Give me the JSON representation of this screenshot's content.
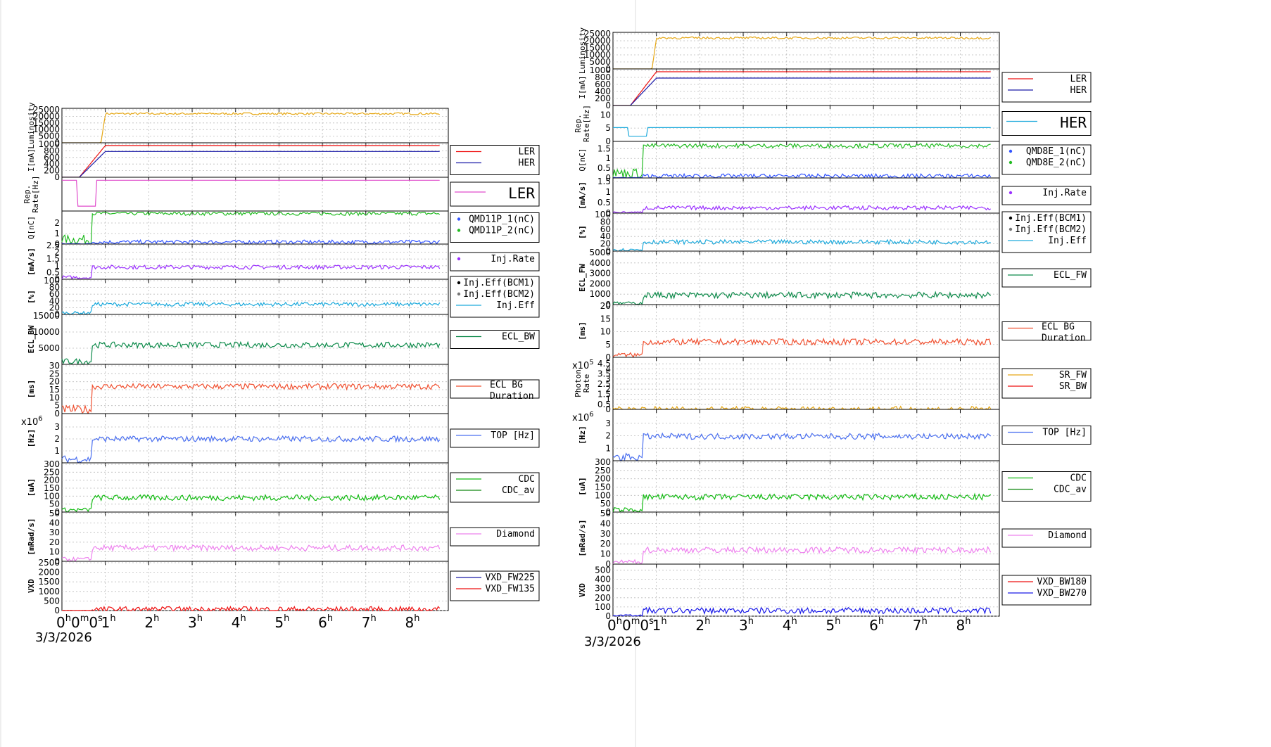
{
  "chart_data": [
    {
      "type": "line",
      "date": "3/3/2026",
      "xlim": [
        0,
        8.9
      ],
      "x_ticks": [
        {
          "base": "0",
          "exp": "h",
          "extra": "0",
          "exp2": "m",
          "extra2": "0",
          "exp3": "s"
        },
        {
          "base": "1",
          "exp": "h"
        },
        {
          "base": "2",
          "exp": "h"
        },
        {
          "base": "3",
          "exp": "h"
        },
        {
          "base": "4",
          "exp": "h"
        },
        {
          "base": "5",
          "exp": "h"
        },
        {
          "base": "6",
          "exp": "h"
        },
        {
          "base": "7",
          "exp": "h"
        },
        {
          "base": "8",
          "exp": "h"
        }
      ],
      "panels": [
        {
          "ylabel": "Luminosity",
          "ylim": [
            0,
            25000
          ],
          "yticks": [
            "0",
            "5000",
            "10000",
            "15000",
            "20000",
            "25000"
          ],
          "legend": [],
          "series": [
            {
              "color": "#e6a817",
              "kind": "lum"
            }
          ]
        },
        {
          "ylabel": "I[mA]",
          "ylim": [
            0,
            1000
          ],
          "yticks": [
            "0",
            "200",
            "400",
            "600",
            "800",
            "1000"
          ],
          "legend": [
            {
              "name": "LER",
              "color": "#ee1111"
            },
            {
              "name": "HER",
              "color": "#1a1aa8"
            }
          ],
          "series": [
            {
              "color": "#ee1111",
              "level": 960
            },
            {
              "color": "#1a1aa8",
              "level": 780
            }
          ]
        },
        {
          "ylabel": "Rep. Rate[Hz]",
          "ylim": [
            0,
            25
          ],
          "yticks": [],
          "legend": [
            {
              "name": "LER",
              "color": "#e04ecc",
              "big": true
            }
          ],
          "series": [
            {
              "color": "#e04ecc",
              "kind": "rep"
            }
          ]
        },
        {
          "ylabel": "Q[nC]",
          "ylim": [
            0,
            3
          ],
          "yticks": [
            "0",
            "1",
            "2"
          ],
          "legend": [
            {
              "name": "QMD11P_1(nC)",
              "color": "#3355ff",
              "marker": true
            },
            {
              "name": "QMD11P_2(nC)",
              "color": "#22bb22",
              "marker": true
            }
          ],
          "series": [
            {
              "color": "#22bb22",
              "level": 2.9
            },
            {
              "color": "#3355ff",
              "level": 0.2
            }
          ]
        },
        {
          "ylabel": "[mA/s]",
          "ylim": [
            0,
            2.5
          ],
          "yticks": [
            "0",
            "0.5",
            "1",
            "1.5",
            "2",
            "2.5"
          ],
          "legend": [
            {
              "name": "Inj.Rate",
              "color": "#9b30ff",
              "marker": true
            }
          ],
          "series": [
            {
              "color": "#9b30ff",
              "level": 0.9
            }
          ]
        },
        {
          "ylabel": "[%]",
          "ylim": [
            0,
            100
          ],
          "yticks": [
            "0",
            "20",
            "40",
            "60",
            "80",
            "100"
          ],
          "legend": [
            {
              "name": "Inj.Eff(BCM1)",
              "color": "#000000",
              "marker": true
            },
            {
              "name": "Inj.Eff(BCM2)",
              "color": "#777777",
              "marker": true
            },
            {
              "name": "Inj.Eff",
              "color": "#1eaadc"
            }
          ],
          "series": [
            {
              "color": "#1eaadc",
              "level": 30
            }
          ]
        },
        {
          "ylabel": "ECL_BW",
          "ylim": [
            0,
            15000
          ],
          "yticks": [
            "5000",
            "10000",
            "15000"
          ],
          "legend": [
            {
              "name": "ECL_BW",
              "color": "#0d8a4a"
            }
          ],
          "series": [
            {
              "color": "#0d8a4a",
              "level": 6000
            }
          ]
        },
        {
          "ylabel": "[ms]",
          "ylim": [
            0,
            30
          ],
          "yticks": [
            "0",
            "5",
            "10",
            "15",
            "20",
            "25",
            "30"
          ],
          "legend": [
            {
              "name": "ECL BG Duration",
              "color": "#f05030"
            }
          ],
          "series": [
            {
              "color": "#f05030",
              "level": 17
            }
          ]
        },
        {
          "ylabel": "[Hz]",
          "ylim": [
            0,
            4
          ],
          "yticks": [
            "1",
            "2",
            "3"
          ],
          "exponent": "x10^6",
          "legend": [
            {
              "name": "TOP [Hz]",
              "color": "#4a6ff0"
            }
          ],
          "series": [
            {
              "color": "#4a6ff0",
              "level": 2.0
            }
          ]
        },
        {
          "ylabel": "[uA]",
          "ylim": [
            0,
            300
          ],
          "yticks": [
            "0",
            "50",
            "100",
            "150",
            "200",
            "250",
            "300"
          ],
          "legend": [
            {
              "name": "CDC",
              "color": "#11bb11"
            },
            {
              "name": "CDC_av",
              "color": "#118811"
            }
          ],
          "series": [
            {
              "color": "#11bb11",
              "level": 90
            }
          ]
        },
        {
          "ylabel": "[mRad/s]",
          "ylim": [
            0,
            50
          ],
          "yticks": [
            "0",
            "10",
            "20",
            "30",
            "40",
            "50"
          ],
          "legend": [
            {
              "name": "Diamond",
              "color": "#ee82ee"
            }
          ],
          "series": [
            {
              "color": "#ee82ee",
              "level": 14
            }
          ]
        },
        {
          "ylabel": "VXD",
          "ylim": [
            0,
            2500
          ],
          "yticks": [
            "0",
            "500",
            "1000",
            "1500",
            "2000",
            "2500"
          ],
          "legend": [
            {
              "name": "VXD_FW225",
              "color": "#1a1aa8"
            },
            {
              "name": "VXD_FW135",
              "color": "#ee1111"
            }
          ],
          "series": [
            {
              "color": "#ee1111",
              "level": 60
            }
          ]
        }
      ]
    },
    {
      "type": "line",
      "date": "3/3/2026",
      "xlim": [
        0,
        8.9
      ],
      "x_ticks": [
        {
          "base": "0",
          "exp": "h",
          "extra": "0",
          "exp2": "m",
          "extra2": "0",
          "exp3": "s"
        },
        {
          "base": "1",
          "exp": "h"
        },
        {
          "base": "2",
          "exp": "h"
        },
        {
          "base": "3",
          "exp": "h"
        },
        {
          "base": "4",
          "exp": "h"
        },
        {
          "base": "5",
          "exp": "h"
        },
        {
          "base": "6",
          "exp": "h"
        },
        {
          "base": "7",
          "exp": "h"
        },
        {
          "base": "8",
          "exp": "h"
        }
      ],
      "panels": [
        {
          "ylabel": "Luminosity",
          "ylim": [
            0,
            25000
          ],
          "yticks": [
            "0",
            "5000",
            "10000",
            "15000",
            "20000",
            "25000"
          ],
          "legend": [],
          "series": [
            {
              "color": "#e6a817",
              "kind": "lum"
            }
          ]
        },
        {
          "ylabel": "I[mA]",
          "ylim": [
            0,
            1000
          ],
          "yticks": [
            "0",
            "200",
            "400",
            "600",
            "800",
            "1000"
          ],
          "legend": [
            {
              "name": "LER",
              "color": "#ee1111"
            },
            {
              "name": "HER",
              "color": "#1a1aa8"
            }
          ],
          "series": [
            {
              "color": "#ee1111",
              "level": 960
            },
            {
              "color": "#1a1aa8",
              "level": 780
            }
          ]
        },
        {
          "ylabel": "Rep. Rate[Hz]",
          "ylim": [
            0,
            13
          ],
          "yticks": [
            "0",
            "5",
            "10"
          ],
          "legend": [
            {
              "name": "HER",
              "color": "#1eaadc",
              "big": true
            }
          ],
          "series": [
            {
              "color": "#1eaadc",
              "kind": "rep"
            }
          ]
        },
        {
          "ylabel": "Q[nC]",
          "ylim": [
            0,
            1.8
          ],
          "yticks": [
            "0",
            "0.5",
            "1",
            "1.5"
          ],
          "legend": [
            {
              "name": "QMD8E_1(nC)",
              "color": "#3355ff",
              "marker": true
            },
            {
              "name": "QMD8E_2(nC)",
              "color": "#22bb22",
              "marker": true
            }
          ],
          "series": [
            {
              "color": "#22bb22",
              "level": 1.65
            },
            {
              "color": "#3355ff",
              "level": 0.1
            }
          ]
        },
        {
          "ylabel": "[mA/s]",
          "ylim": [
            0,
            1.6
          ],
          "yticks": [
            "0",
            "0.5",
            "1",
            "1.5"
          ],
          "legend": [
            {
              "name": "Inj.Rate",
              "color": "#9b30ff",
              "marker": true
            }
          ],
          "series": [
            {
              "color": "#9b30ff",
              "level": 0.25
            }
          ]
        },
        {
          "ylabel": "[%]",
          "ylim": [
            0,
            100
          ],
          "yticks": [
            "0",
            "20",
            "40",
            "60",
            "80",
            "100"
          ],
          "legend": [
            {
              "name": "Inj.Eff(BCM1)",
              "color": "#000000",
              "marker": true
            },
            {
              "name": "Inj.Eff(BCM2)",
              "color": "#777777",
              "marker": true
            },
            {
              "name": "Inj.Eff",
              "color": "#1eaadc"
            }
          ],
          "series": [
            {
              "color": "#1eaadc",
              "level": 25
            }
          ]
        },
        {
          "ylabel": "ECL_FW",
          "ylim": [
            0,
            5000
          ],
          "yticks": [
            "0",
            "1000",
            "2000",
            "3000",
            "4000",
            "5000"
          ],
          "legend": [
            {
              "name": "ECL_FW",
              "color": "#0d8a4a"
            }
          ],
          "series": [
            {
              "color": "#0d8a4a",
              "level": 900
            }
          ]
        },
        {
          "ylabel": "[ms]",
          "ylim": [
            0,
            20
          ],
          "yticks": [
            "0",
            "5",
            "10",
            "15",
            "20"
          ],
          "legend": [
            {
              "name": "ECL BG Duration",
              "color": "#f05030"
            }
          ],
          "series": [
            {
              "color": "#f05030",
              "level": 6
            }
          ]
        },
        {
          "ylabel": "Photon Rate",
          "ylim": [
            0,
            5
          ],
          "yticks": [
            "0",
            "0.5",
            "1",
            "1.5",
            "2",
            "2.5",
            "3",
            "3.5",
            "4",
            "4.5"
          ],
          "exponent": "x10^5",
          "legend": [
            {
              "name": "SR_FW",
              "color": "#e6a817"
            },
            {
              "name": "SR_BW",
              "color": "#ee1111"
            }
          ],
          "series": [
            {
              "color": "#e6a817",
              "level": 0
            }
          ]
        },
        {
          "ylabel": "[Hz]",
          "ylim": [
            0,
            4
          ],
          "yticks": [
            "1",
            "2",
            "3"
          ],
          "exponent": "x10^6",
          "legend": [
            {
              "name": "TOP [Hz]",
              "color": "#4a6ff0"
            }
          ],
          "series": [
            {
              "color": "#4a6ff0",
              "level": 1.95
            }
          ]
        },
        {
          "ylabel": "[uA]",
          "ylim": [
            0,
            300
          ],
          "yticks": [
            "0",
            "50",
            "100",
            "150",
            "200",
            "250",
            "300"
          ],
          "legend": [
            {
              "name": "CDC",
              "color": "#11bb11"
            },
            {
              "name": "CDC_av",
              "color": "#118811"
            }
          ],
          "series": [
            {
              "color": "#11bb11",
              "level": 90
            }
          ]
        },
        {
          "ylabel": "[mRad/s]",
          "ylim": [
            0,
            50
          ],
          "yticks": [
            "0",
            "10",
            "20",
            "30",
            "40",
            "50"
          ],
          "legend": [
            {
              "name": "Diamond",
              "color": "#ee82ee"
            }
          ],
          "series": [
            {
              "color": "#ee82ee",
              "level": 14
            }
          ]
        },
        {
          "ylabel": "VXD",
          "ylim": [
            0,
            550
          ],
          "yticks": [
            "0",
            "100",
            "200",
            "300",
            "400",
            "500"
          ],
          "legend": [
            {
              "name": "VXD_BW180",
              "color": "#ee1111"
            },
            {
              "name": "VXD_BW270",
              "color": "#1a1ae8"
            }
          ],
          "series": [
            {
              "color": "#1a1ae8",
              "level": 60
            }
          ]
        }
      ]
    }
  ]
}
